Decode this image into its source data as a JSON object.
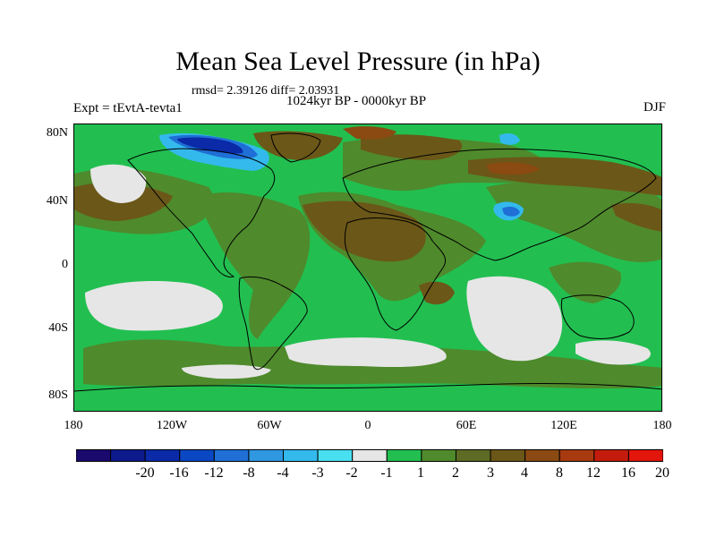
{
  "title": "Mean Sea Level Pressure (in hPa)",
  "stats_line": "rmsd= 2.39126 diff= 2.03931",
  "subtitle": "1024kyr BP - 0000kyr BP",
  "experiment_label": "Expt = tEvtA-tevta1",
  "season_label": "DJF",
  "y_axis_labels": [
    "80N",
    "40N",
    "0",
    "40S",
    "80S"
  ],
  "x_axis_labels": [
    "180",
    "120W",
    "60W",
    "0",
    "60E",
    "120E",
    "180"
  ],
  "colorbar": {
    "labels": [
      "-20",
      "-16",
      "-12",
      "-8",
      "-4",
      "-3",
      "-2",
      "-1",
      "1",
      "2",
      "3",
      "4",
      "8",
      "12",
      "16",
      "20"
    ],
    "colors": [
      "#1a0a6e",
      "#0d1a8c",
      "#0a2aa8",
      "#0a47c2",
      "#1f6fd6",
      "#2f98e0",
      "#34b9ec",
      "#48dff0",
      "#e6e6e6",
      "#22bf50",
      "#4f8a2c",
      "#5e6b24",
      "#6b5718",
      "#8a4a12",
      "#a83a10",
      "#c41c0c",
      "#e3160c"
    ]
  },
  "map_colors": {
    "ocean_green": "#22bf50",
    "olive": "#4f8a2c",
    "brown": "#6b5718",
    "dark_brown": "#8a4a12",
    "grey": "#e6e6e6",
    "blue": "#1f6fd6",
    "cyan": "#34b9ec",
    "navy": "#0a2aa8"
  }
}
